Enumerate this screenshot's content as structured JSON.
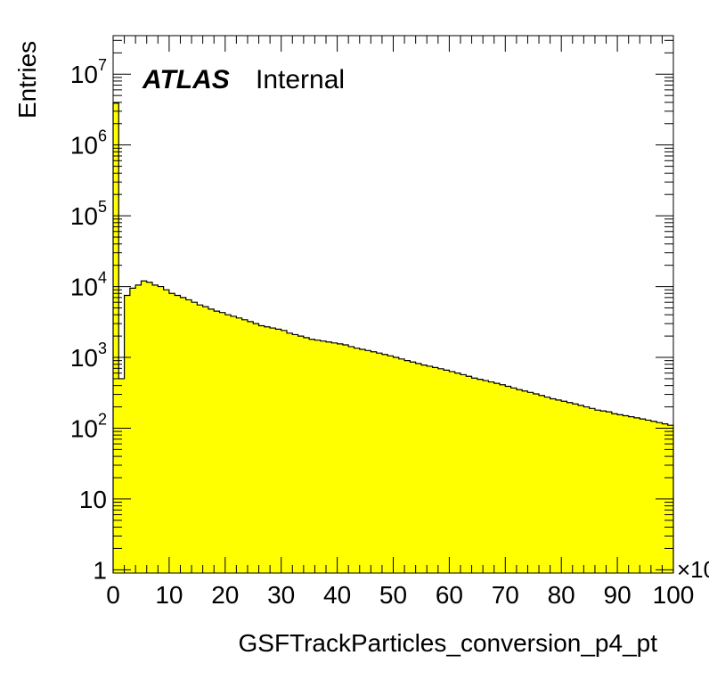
{
  "chart_data": {
    "type": "histogram",
    "label_bold": "ATLAS",
    "label": "Internal",
    "xlabel": "GSFTrackParticles_conversion_p4_pt",
    "ylabel": "Entries",
    "x_multiplier": "×10",
    "xlim": [
      0,
      100
    ],
    "ylim": [
      0.9,
      35000000
    ],
    "yscale": "log",
    "x_tick_labels": [
      "0",
      "10",
      "20",
      "30",
      "40",
      "50",
      "60",
      "70",
      "80",
      "90",
      "100"
    ],
    "y_tick_labels": [
      {
        "value": 1,
        "base": "1",
        "exp": ""
      },
      {
        "value": 10,
        "base": "10",
        "exp": ""
      },
      {
        "value": 100,
        "base": "10",
        "exp": "2"
      },
      {
        "value": 1000,
        "base": "10",
        "exp": "3"
      },
      {
        "value": 10000,
        "base": "10",
        "exp": "4"
      },
      {
        "value": 100000,
        "base": "10",
        "exp": "5"
      },
      {
        "value": 1000000,
        "base": "10",
        "exp": "6"
      },
      {
        "value": 10000000,
        "base": "10",
        "exp": "7"
      }
    ],
    "fill_color": "#ffff00",
    "line_color": "#000000",
    "bin_width": 1,
    "bin_edges_start": 0,
    "values": [
      3900000,
      500,
      7500,
      9500,
      10500,
      12000,
      11500,
      10500,
      10000,
      9000,
      8000,
      7500,
      7000,
      6500,
      6000,
      5500,
      5200,
      4800,
      4500,
      4300,
      4000,
      3800,
      3600,
      3400,
      3200,
      3000,
      2800,
      2700,
      2600,
      2500,
      2400,
      2200,
      2100,
      2000,
      1900,
      1800,
      1750,
      1700,
      1650,
      1600,
      1550,
      1500,
      1420,
      1350,
      1300,
      1250,
      1200,
      1150,
      1100,
      1050,
      1000,
      950,
      900,
      860,
      820,
      780,
      750,
      720,
      690,
      660,
      630,
      600,
      570,
      540,
      510,
      490,
      470,
      450,
      430,
      410,
      390,
      370,
      350,
      335,
      320,
      305,
      290,
      275,
      260,
      250,
      240,
      230,
      220,
      210,
      200,
      190,
      180,
      175,
      170,
      160,
      155,
      150,
      145,
      140,
      135,
      130,
      125,
      120,
      115,
      110
    ],
    "grid": false,
    "legend": "none"
  }
}
